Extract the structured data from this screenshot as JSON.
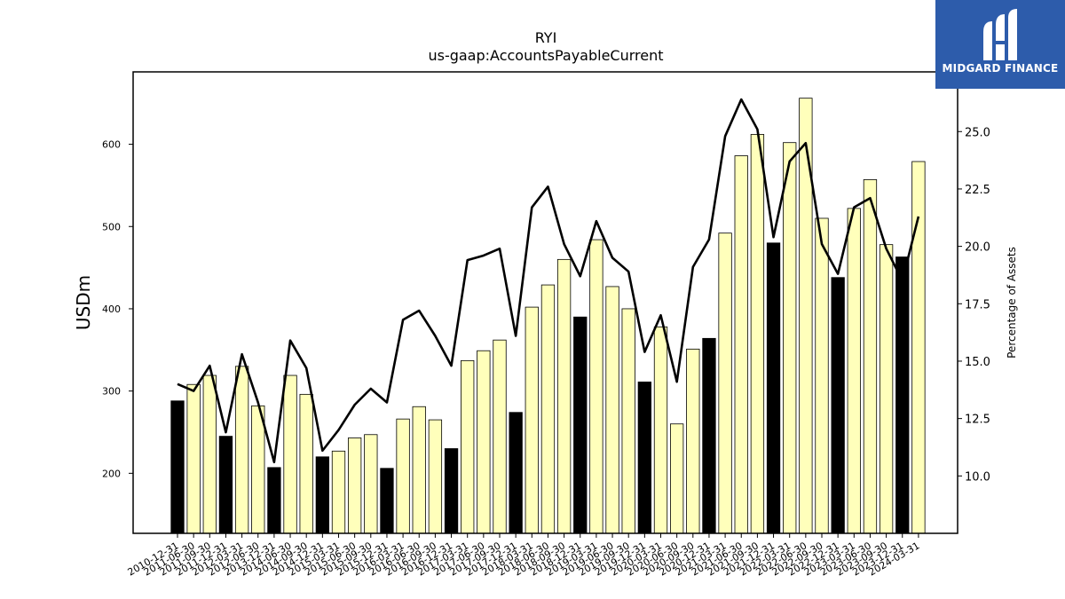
{
  "brand": {
    "name": "MIDGARD FINANCE",
    "colors": {
      "background": "#2d5cab",
      "text": "#ffffff"
    }
  },
  "chart_data": {
    "type": "bar",
    "title": "RYI",
    "subtitle": "us-gaap:AccountsPayableCurrent",
    "ylabel": "USDm",
    "y2label": "Percentage of Assets",
    "ylim": [
      127,
      688
    ],
    "y2lim": [
      7.5,
      27.6
    ],
    "yticks": [
      200,
      300,
      400,
      500,
      600
    ],
    "y2ticks": [
      "10.0",
      "12.5",
      "15.0",
      "17.5",
      "20.0",
      "22.5",
      "25.0"
    ],
    "grid": false,
    "categories": [
      "2010-12-31",
      "2011-06-30",
      "2011-09-30",
      "2011-12-31",
      "2012-03-31",
      "2012-06-30",
      "2013-12-31",
      "2014-06-30",
      "2014-09-30",
      "2014-12-31",
      "2015-03-31",
      "2015-06-30",
      "2015-09-30",
      "2015-12-31",
      "2016-03-31",
      "2016-06-30",
      "2016-09-30",
      "2016-12-31",
      "2017-03-31",
      "2017-06-30",
      "2017-09-30",
      "2017-12-31",
      "2018-03-31",
      "2018-06-30",
      "2018-09-30",
      "2018-12-31",
      "2019-03-31",
      "2019-06-30",
      "2019-09-30",
      "2019-12-31",
      "2020-03-31",
      "2020-06-30",
      "2020-09-30",
      "2020-12-31",
      "2021-03-31",
      "2021-06-30",
      "2021-09-30",
      "2021-12-31",
      "2022-03-31",
      "2022-06-30",
      "2022-09-30",
      "2022-12-31",
      "2023-03-31",
      "2023-06-30",
      "2023-09-30",
      "2023-12-31",
      "2024-03-31"
    ],
    "series": [
      {
        "kind": "bar",
        "values": [
          288,
          308,
          319,
          245,
          330,
          282,
          207,
          319,
          296,
          220,
          227,
          243,
          247,
          206,
          266,
          281,
          265,
          230,
          337,
          349,
          362,
          274,
          402,
          429,
          460,
          390,
          484,
          427,
          400,
          311,
          378,
          260,
          351,
          364,
          492,
          586,
          612,
          480,
          602,
          656,
          510,
          438,
          522,
          557,
          478,
          463,
          579
        ],
        "highlight": [
          true,
          false,
          false,
          true,
          false,
          false,
          true,
          false,
          false,
          true,
          false,
          false,
          false,
          true,
          false,
          false,
          false,
          true,
          false,
          false,
          false,
          true,
          false,
          false,
          false,
          true,
          false,
          false,
          false,
          true,
          false,
          false,
          false,
          true,
          false,
          false,
          false,
          true,
          false,
          false,
          false,
          true,
          false,
          false,
          false,
          true,
          false
        ],
        "colors": {
          "normal": "#ffffbb",
          "highlight": "#000000",
          "edge": "#000000"
        }
      },
      {
        "kind": "line",
        "axis": "right",
        "values": [
          14.0,
          13.7,
          14.8,
          11.9,
          15.3,
          13.2,
          10.6,
          15.9,
          14.7,
          11.1,
          12.0,
          13.1,
          13.8,
          13.2,
          16.8,
          17.2,
          16.1,
          14.8,
          19.4,
          19.6,
          19.9,
          16.1,
          21.7,
          22.6,
          20.1,
          18.7,
          21.1,
          19.5,
          18.9,
          15.4,
          17.0,
          14.1,
          19.1,
          20.3,
          24.8,
          26.4,
          25.1,
          20.4,
          23.7,
          24.5,
          20.1,
          18.8,
          21.7,
          22.1,
          19.9,
          18.5,
          21.3
        ],
        "color": "#000000"
      }
    ]
  }
}
